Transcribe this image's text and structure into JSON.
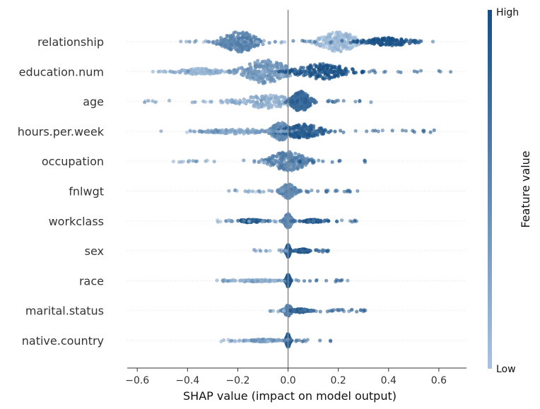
{
  "chart_data": {
    "type": "scatter",
    "subtype": "beeswarm",
    "xlabel": "SHAP value (impact on model output)",
    "xlim": [
      -0.64,
      0.71
    ],
    "xticks": [
      -0.6,
      -0.4,
      -0.2,
      0.0,
      0.2,
      0.4,
      0.6
    ],
    "xtick_labels": [
      "−0.6",
      "−0.4",
      "−0.2",
      "0.0",
      "0.2",
      "0.4",
      "0.6"
    ],
    "colorbar": {
      "title": "Feature value",
      "high_label": "High",
      "low_label": "Low",
      "low_color": "#a9c3de",
      "high_color": "#174f85"
    },
    "colors": {
      "axis": "#333333",
      "zero_line": "#888888",
      "row_guide": "#dddddd"
    },
    "grid": false,
    "features": [
      {
        "name": "relationship",
        "min": -0.44,
        "max": 0.58,
        "clusters": [
          {
            "center": -0.19,
            "spread": 0.1,
            "height": 0.85,
            "value": 0.55
          },
          {
            "center": 0.2,
            "spread": 0.1,
            "height": 0.85,
            "value": 0.08
          },
          {
            "center": 0.4,
            "spread": 0.12,
            "height": 0.35,
            "value": 1.0
          }
        ]
      },
      {
        "name": "education.num",
        "min": -0.57,
        "max": 0.65,
        "clusters": [
          {
            "center": -0.09,
            "spread": 0.12,
            "height": 1.0,
            "value": 0.4
          },
          {
            "center": 0.14,
            "spread": 0.14,
            "height": 0.65,
            "value": 1.0
          },
          {
            "center": -0.35,
            "spread": 0.12,
            "height": 0.25,
            "value": 0.15
          }
        ]
      },
      {
        "name": "age",
        "min": -0.59,
        "max": 0.34,
        "clusters": [
          {
            "center": -0.08,
            "spread": 0.16,
            "height": 0.55,
            "value": 0.2
          },
          {
            "center": 0.05,
            "spread": 0.05,
            "height": 0.85,
            "value": 0.8
          }
        ]
      },
      {
        "name": "hours.per.week",
        "min": -0.55,
        "max": 0.59,
        "clusters": [
          {
            "center": -0.03,
            "spread": 0.05,
            "height": 0.75,
            "value": 0.5
          },
          {
            "center": 0.06,
            "spread": 0.1,
            "height": 0.6,
            "value": 0.9
          },
          {
            "center": -0.2,
            "spread": 0.15,
            "height": 0.2,
            "value": 0.3
          }
        ]
      },
      {
        "name": "occupation",
        "min": -0.49,
        "max": 0.32,
        "clusters": [
          {
            "center": 0.0,
            "spread": 0.1,
            "height": 0.8,
            "value": 0.55
          }
        ]
      },
      {
        "name": "fnlwgt",
        "min": -0.24,
        "max": 0.29,
        "clusters": [
          {
            "center": 0.0,
            "spread": 0.04,
            "height": 0.6,
            "value": 0.5
          }
        ]
      },
      {
        "name": "workclass",
        "min": -0.29,
        "max": 0.28,
        "clusters": [
          {
            "center": 0.0,
            "spread": 0.02,
            "height": 0.6,
            "value": 0.5
          },
          {
            "center": -0.15,
            "spread": 0.07,
            "height": 0.12,
            "value": 0.9
          },
          {
            "center": 0.1,
            "spread": 0.05,
            "height": 0.12,
            "value": 0.9
          }
        ]
      },
      {
        "name": "sex",
        "min": -0.15,
        "max": 0.16,
        "clusters": [
          {
            "center": 0.0,
            "spread": 0.01,
            "height": 0.5,
            "value": 0.9
          },
          {
            "center": 0.06,
            "spread": 0.03,
            "height": 0.15,
            "value": 0.95
          }
        ]
      },
      {
        "name": "race",
        "min": -0.29,
        "max": 0.24,
        "clusters": [
          {
            "center": 0.0,
            "spread": 0.01,
            "height": 0.5,
            "value": 0.95
          },
          {
            "center": -0.12,
            "spread": 0.08,
            "height": 0.08,
            "value": 0.2
          }
        ]
      },
      {
        "name": "marital.status",
        "min": -0.1,
        "max": 0.32,
        "clusters": [
          {
            "center": 0.0,
            "spread": 0.02,
            "height": 0.45,
            "value": 0.6
          },
          {
            "center": 0.05,
            "spread": 0.04,
            "height": 0.15,
            "value": 0.8
          }
        ]
      },
      {
        "name": "native.country",
        "min": -0.27,
        "max": 0.17,
        "clusters": [
          {
            "center": 0.0,
            "spread": 0.01,
            "height": 0.55,
            "value": 0.9
          },
          {
            "center": -0.1,
            "spread": 0.07,
            "height": 0.1,
            "value": 0.3
          }
        ]
      }
    ]
  }
}
